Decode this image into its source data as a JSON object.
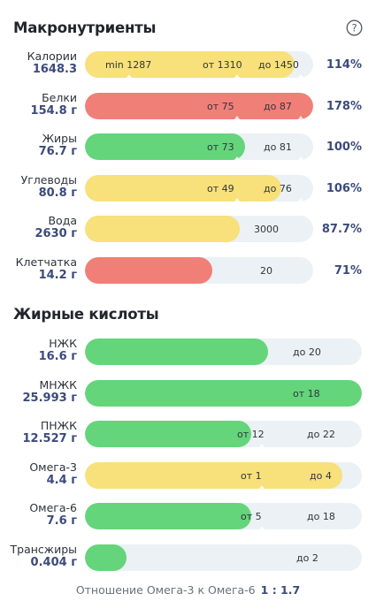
{
  "sections": {
    "macros_title": "Макронутриенты",
    "fatty_title": "Жирные кислоты"
  },
  "icons": {
    "help": "question-circle-icon"
  },
  "colors": {
    "yellow": "#f8e07a",
    "red": "#f07f78",
    "green": "#64d57a",
    "track": "#ebf1f5",
    "value": "#3b4a7c"
  },
  "macros": [
    {
      "name": "Калории",
      "value": "1648.3",
      "percent": "114%",
      "color": "yellow",
      "fill_fraction": 0.92,
      "markers": [
        "min 1287",
        "от 1310",
        "до 1450"
      ]
    },
    {
      "name": "Белки",
      "value": "154.8 г",
      "percent": "178%",
      "color": "red",
      "fill_fraction": 1.0,
      "markers": [
        "от 75",
        "до 87"
      ]
    },
    {
      "name": "Жиры",
      "value": "76.7 г",
      "percent": "100%",
      "color": "green",
      "fill_fraction": 0.7,
      "markers": [
        "от 73",
        "до 81"
      ]
    },
    {
      "name": "Углеводы",
      "value": "80.8 г",
      "percent": "106%",
      "color": "yellow",
      "fill_fraction": 0.86,
      "markers": [
        "от 49",
        "до 76"
      ]
    },
    {
      "name": "Вода",
      "value": "2630 г",
      "percent": "87.7%",
      "color": "yellow",
      "fill_fraction": 0.68,
      "markers": [
        "3000"
      ]
    },
    {
      "name": "Клетчатка",
      "value": "14.2 г",
      "percent": "71%",
      "color": "red",
      "fill_fraction": 0.56,
      "markers": [
        "20"
      ]
    }
  ],
  "fatty_acids": [
    {
      "name": "НЖК",
      "value": "16.6 г",
      "color": "green",
      "fill_fraction": 0.66,
      "markers": [
        "до 20"
      ]
    },
    {
      "name": "МНЖК",
      "value": "25.993 г",
      "color": "green",
      "fill_fraction": 1.0,
      "markers": [
        "от 18"
      ]
    },
    {
      "name": "ПНЖК",
      "value": "12.527 г",
      "color": "green",
      "fill_fraction": 0.6,
      "markers": [
        "от 12",
        "до 22"
      ]
    },
    {
      "name": "Омега-3",
      "value": "4.4 г",
      "color": "yellow",
      "fill_fraction": 0.93,
      "markers": [
        "от 1",
        "до 4"
      ]
    },
    {
      "name": "Омега-6",
      "value": "7.6 г",
      "color": "green",
      "fill_fraction": 0.6,
      "markers": [
        "от 5",
        "до 18"
      ]
    },
    {
      "name": "Трансжиры",
      "value": "0.404 г",
      "color": "green",
      "fill_fraction": 0.15,
      "markers": [
        "до 2"
      ]
    }
  ],
  "ratio": {
    "label": "Отношение Омега-3 к Омега-6",
    "value": "1 : 1.7"
  }
}
